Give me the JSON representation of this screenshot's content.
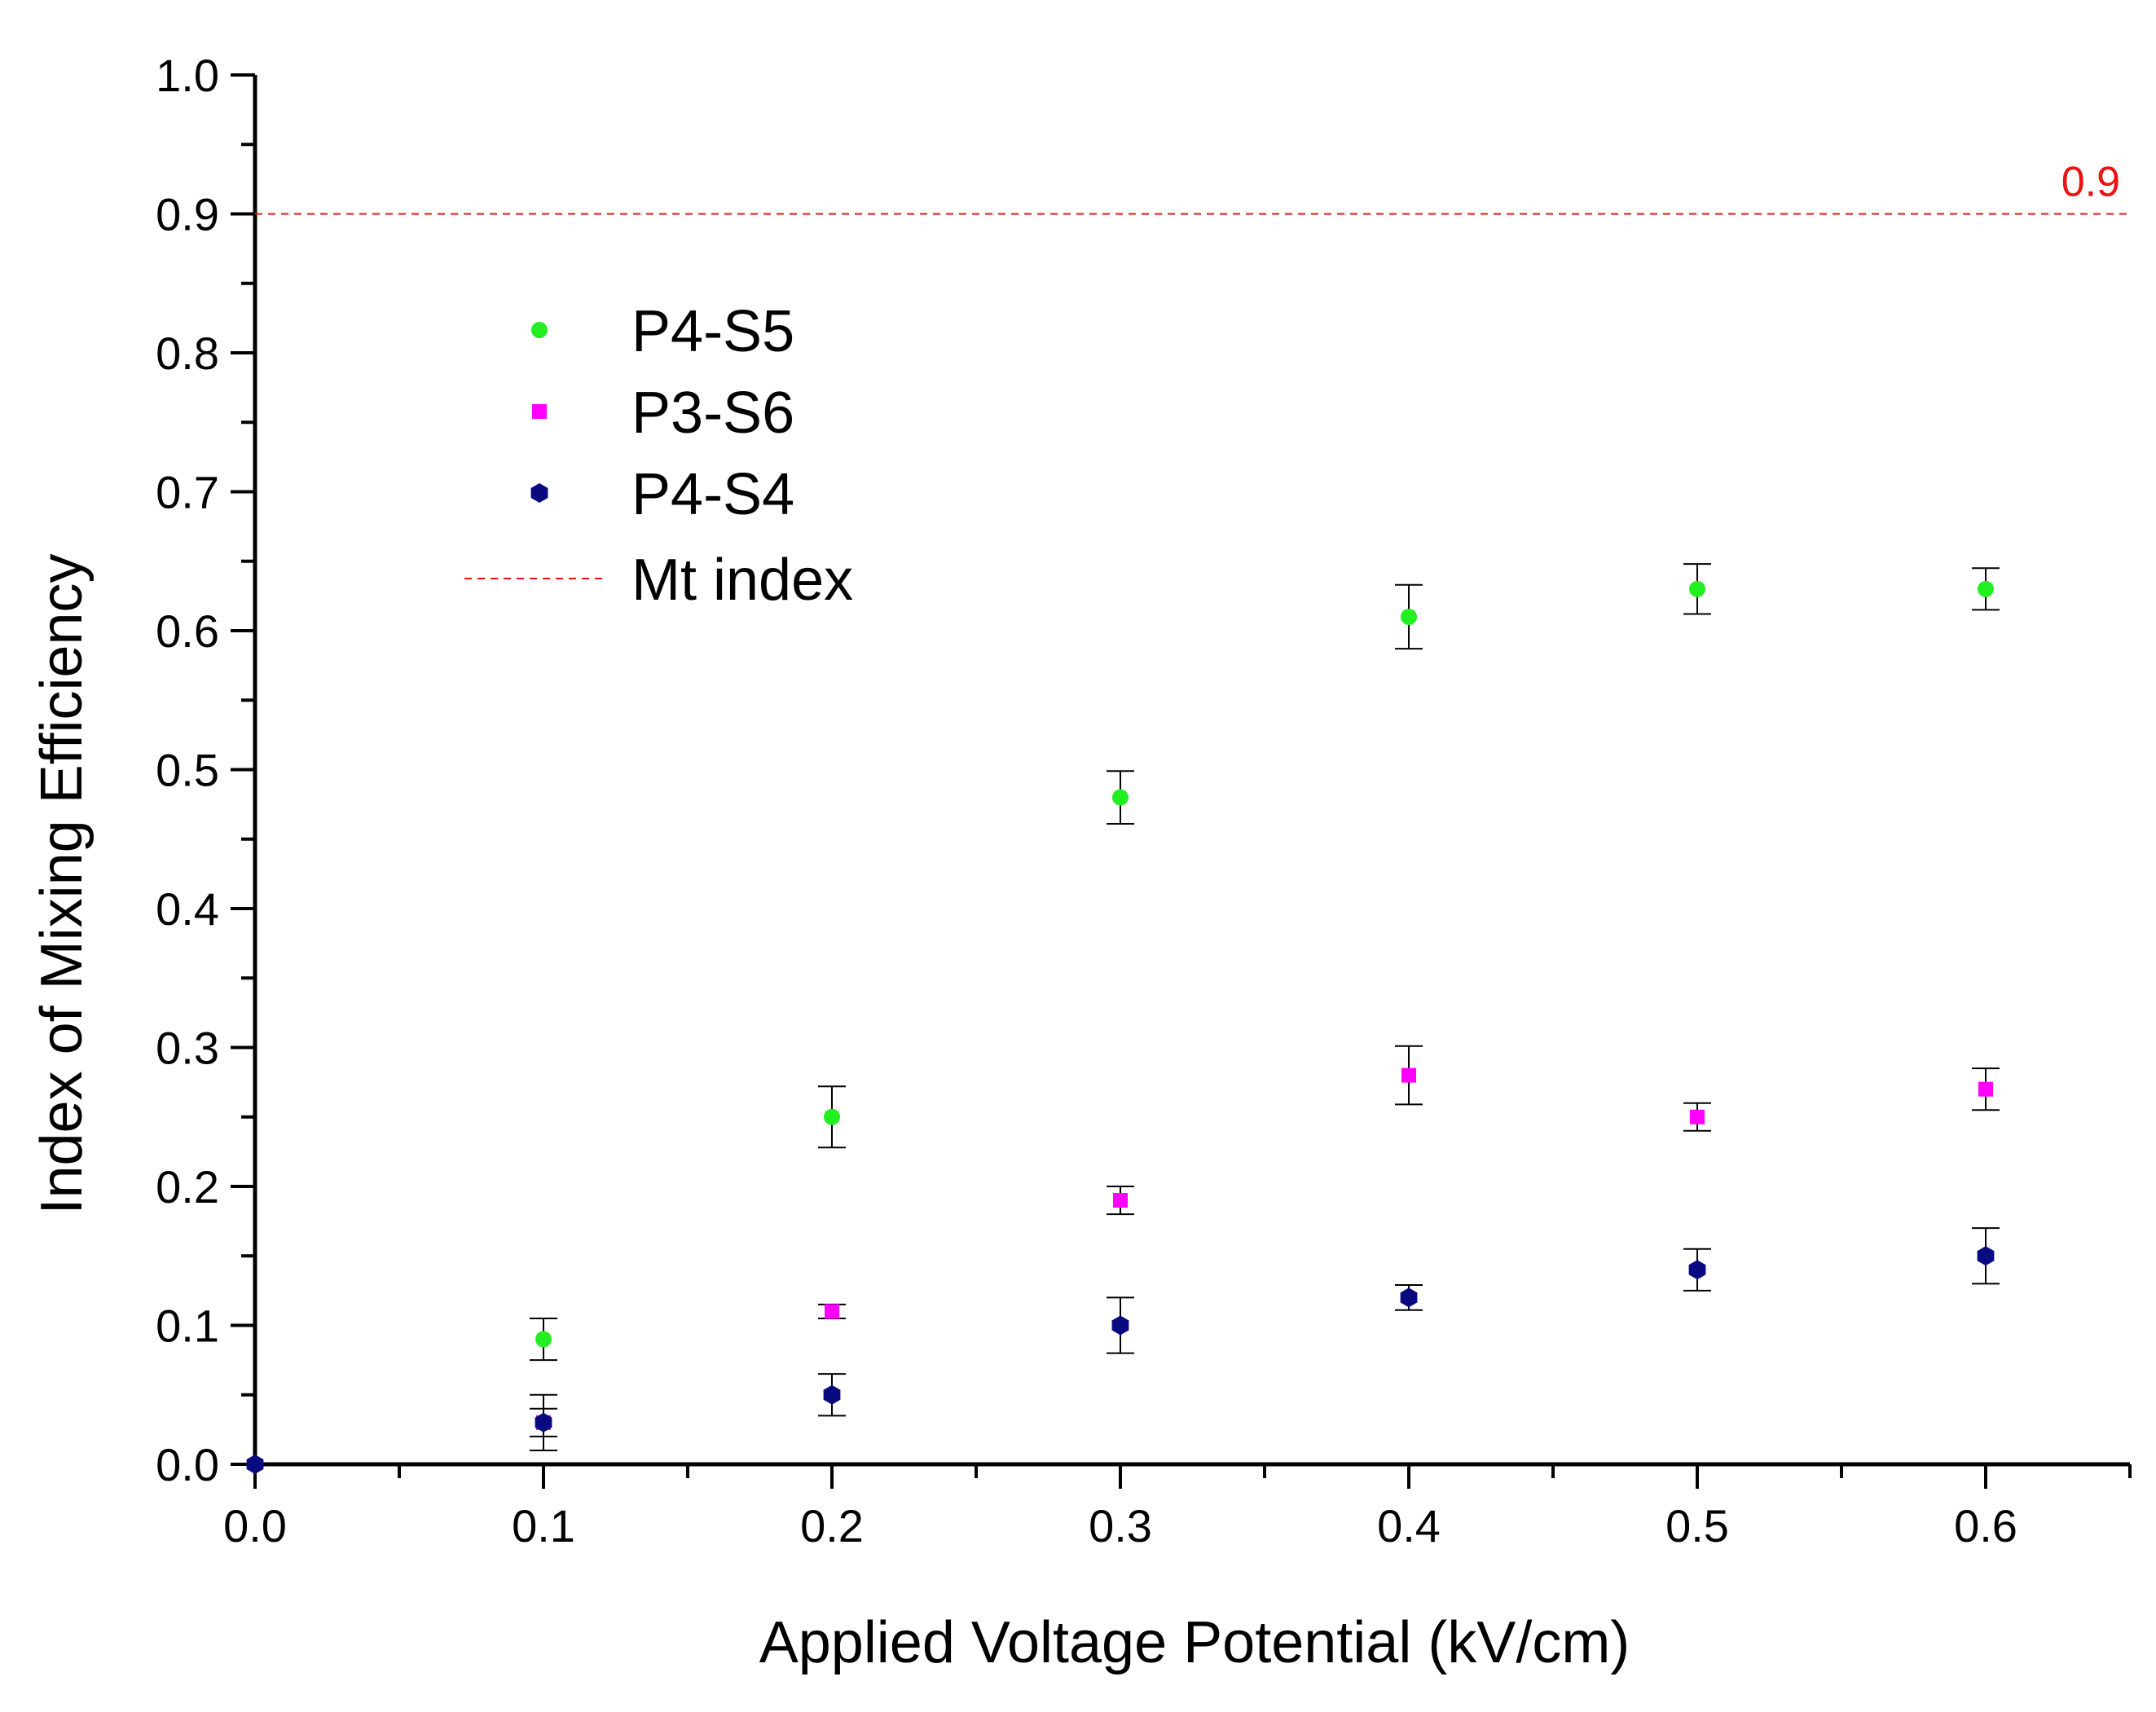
{
  "chart_data": {
    "type": "scatter",
    "title": "",
    "xlabel": "Applied Voltage Potential (kV/cm)",
    "ylabel": "Index of Mixing Efficiency",
    "xlim": [
      0.0,
      0.65
    ],
    "ylim": [
      0.0,
      1.0
    ],
    "x_ticks": [
      "0.0",
      "0.1",
      "0.2",
      "0.3",
      "0.4",
      "0.5",
      "0.6"
    ],
    "y_ticks": [
      "0.0",
      "0.1",
      "0.2",
      "0.3",
      "0.4",
      "0.5",
      "0.6",
      "0.7",
      "0.8",
      "0.9",
      "1.0"
    ],
    "grid": false,
    "legend_position": "upper-left",
    "series": [
      {
        "name": "P4-S5",
        "marker": "circle",
        "color": "#22ee22",
        "points": [
          {
            "x": 0.1,
            "y": 0.09,
            "err": 0.015
          },
          {
            "x": 0.2,
            "y": 0.25,
            "err": 0.022
          },
          {
            "x": 0.3,
            "y": 0.48,
            "err": 0.019
          },
          {
            "x": 0.4,
            "y": 0.61,
            "err": 0.023
          },
          {
            "x": 0.5,
            "y": 0.63,
            "err": 0.018
          },
          {
            "x": 0.6,
            "y": 0.63,
            "err": 0.015
          }
        ]
      },
      {
        "name": "P3-S6",
        "marker": "square",
        "color": "#ff00ff",
        "points": [
          {
            "x": 0.1,
            "y": 0.03,
            "err": 0.01
          },
          {
            "x": 0.2,
            "y": 0.11,
            "err": 0.005
          },
          {
            "x": 0.3,
            "y": 0.19,
            "err": 0.01
          },
          {
            "x": 0.4,
            "y": 0.28,
            "err": 0.021
          },
          {
            "x": 0.5,
            "y": 0.25,
            "err": 0.01
          },
          {
            "x": 0.6,
            "y": 0.27,
            "err": 0.015
          }
        ]
      },
      {
        "name": "P4-S4",
        "marker": "hexagon",
        "color": "#0a0a80",
        "points": [
          {
            "x": 0.0,
            "y": 0.0,
            "err": 0.0
          },
          {
            "x": 0.1,
            "y": 0.03,
            "err": 0.02
          },
          {
            "x": 0.2,
            "y": 0.05,
            "err": 0.015
          },
          {
            "x": 0.3,
            "y": 0.1,
            "err": 0.02
          },
          {
            "x": 0.4,
            "y": 0.12,
            "err": 0.009
          },
          {
            "x": 0.5,
            "y": 0.14,
            "err": 0.015
          },
          {
            "x": 0.6,
            "y": 0.15,
            "err": 0.02
          }
        ]
      }
    ],
    "reference_line": {
      "name": "Mt index",
      "y": 0.9,
      "label": "0.9",
      "color": "#ee1111",
      "style": "dashed"
    }
  }
}
